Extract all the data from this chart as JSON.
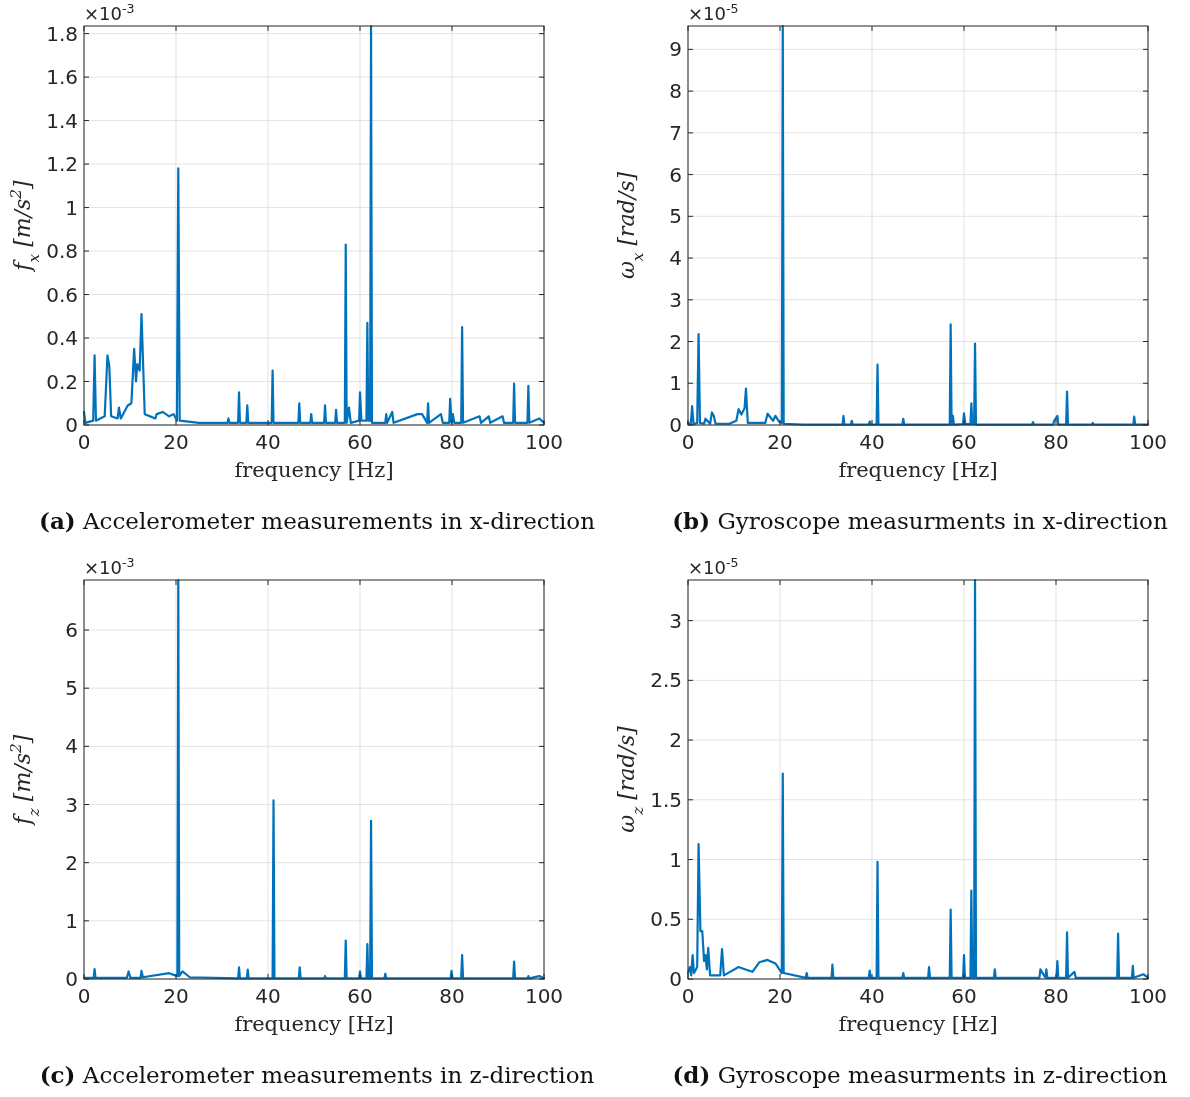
{
  "chart_data": [
    {
      "type": "line",
      "title": "(a) Accelerometer measurements in x-direction",
      "xlabel": "frequency [Hz]",
      "ylabel": "f$_{x}$ [m/s$^{2}$]",
      "annotations": [
        "×10$^{-3}$"
      ],
      "xlim": [
        0,
        100
      ],
      "xticks": [
        0,
        20,
        40,
        60,
        80,
        100
      ],
      "ylim": [
        0,
        1.835
      ],
      "yticks": [
        0,
        0.2,
        0.4,
        0.6,
        0.8,
        1,
        1.2,
        1.4,
        1.6,
        1.8
      ],
      "grid": true,
      "series": [
        {
          "color": "#0072bd",
          "x": [
            0,
            0.3,
            2.0,
            2.3,
            2.6,
            4.5,
            5.1,
            5.5,
            5.9,
            7.3,
            7.6,
            8,
            9.5,
            10.3,
            10.9,
            11.3,
            11.6,
            12.1,
            12.5,
            13.2,
            15.5,
            15.8,
            17.1,
            18.5,
            19.5,
            20.2,
            20.5,
            20.8,
            25,
            31.2,
            31.4,
            31.6,
            33.5,
            33.7,
            33.9,
            35.3,
            35.5,
            35.7,
            40.8,
            41,
            41.2,
            46.6,
            46.8,
            47,
            49.2,
            49.4,
            49.6,
            52.2,
            52.4,
            52.6,
            54.6,
            54.8,
            55,
            56.7,
            56.9,
            57.1,
            57.6,
            58,
            59.8,
            60,
            60.3,
            61.4,
            61.6,
            61.8,
            62.2,
            62.4,
            62.6,
            65.5,
            65.7,
            65.9,
            67,
            67.3,
            72.5,
            73.5,
            74.6,
            74.8,
            75,
            77.6,
            78,
            79.4,
            79.6,
            79.9,
            80.2,
            80.5,
            82,
            82.2,
            82.4,
            86,
            86.3,
            88,
            88.3,
            91,
            91.3,
            93.3,
            93.5,
            93.7,
            96.4,
            96.6,
            96.8,
            99,
            100
          ],
          "values": [
            0.06,
            0.01,
            0.02,
            0.32,
            0.02,
            0.04,
            0.32,
            0.27,
            0.04,
            0.03,
            0.08,
            0.03,
            0.09,
            0.1,
            0.35,
            0.2,
            0.28,
            0.25,
            0.51,
            0.05,
            0.03,
            0.05,
            0.06,
            0.04,
            0.05,
            0.02,
            1.18,
            0.02,
            0.01,
            0.01,
            0.03,
            0.01,
            0.01,
            0.15,
            0.01,
            0.01,
            0.09,
            0.01,
            0.01,
            0.25,
            0.01,
            0.01,
            0.1,
            0.01,
            0.01,
            0.05,
            0.01,
            0.01,
            0.09,
            0.01,
            0.01,
            0.07,
            0.01,
            0.01,
            0.83,
            0.01,
            0.08,
            0.01,
            0.02,
            0.15,
            0.02,
            0.02,
            0.47,
            0.02,
            0.02,
            1.835,
            0.01,
            0.01,
            0.05,
            0.01,
            0.06,
            0.01,
            0.05,
            0.05,
            0.01,
            0.1,
            0.01,
            0.05,
            0.01,
            0.01,
            0.12,
            0.01,
            0.05,
            0.01,
            0.01,
            0.45,
            0.01,
            0.04,
            0.01,
            0.04,
            0.01,
            0.04,
            0.01,
            0.01,
            0.19,
            0.01,
            0.01,
            0.18,
            0.01,
            0.03,
            0.01
          ]
        }
      ]
    },
    {
      "type": "line",
      "title": "(b) Gyroscope measurments in x-direction",
      "xlabel": "frequency [Hz]",
      "ylabel": "ω$_{x}$ [rad/s]",
      "annotations": [
        "×10$^{-5}$"
      ],
      "xlim": [
        0,
        100
      ],
      "xticks": [
        0,
        20,
        40,
        60,
        80,
        100
      ],
      "ylim": [
        0,
        9.56
      ],
      "yticks": [
        0,
        1,
        2,
        3,
        4,
        5,
        6,
        7,
        8,
        9
      ],
      "grid": true,
      "series": [
        {
          "color": "#0072bd",
          "x": [
            0,
            0.6,
            0.9,
            1.2,
            2.0,
            2.3,
            2.6,
            3.5,
            3.8,
            4.8,
            5.2,
            5.6,
            6,
            9,
            10.5,
            11,
            11.6,
            12.3,
            12.6,
            13,
            16.8,
            17.3,
            18.5,
            19,
            19.8,
            20.4,
            20.6,
            20.8,
            25,
            33.6,
            33.8,
            34,
            35.4,
            35.6,
            35.8,
            39.3,
            39.5,
            39.7,
            41,
            41.2,
            41.4,
            46.6,
            46.8,
            47,
            56.9,
            57.1,
            57.3,
            57.6,
            57.8,
            59.8,
            60,
            60.3,
            61.4,
            61.6,
            61.8,
            62.2,
            62.4,
            62.6,
            74.8,
            75,
            75.2,
            79.4,
            79.6,
            80.3,
            80.5,
            82.2,
            82.4,
            82.6,
            87.8,
            88,
            88.2,
            96.8,
            97,
            97.2,
            100
          ],
          "values": [
            0.05,
            0.02,
            0.45,
            0.02,
            0.05,
            2.18,
            0.05,
            0.03,
            0.15,
            0.03,
            0.3,
            0.22,
            0.03,
            0.03,
            0.1,
            0.38,
            0.25,
            0.4,
            0.87,
            0.05,
            0.05,
            0.27,
            0.1,
            0.22,
            0.08,
            0.05,
            9.56,
            0.03,
            0.01,
            0.01,
            0.22,
            0.01,
            0.01,
            0.1,
            0.01,
            0.01,
            0.08,
            0.01,
            0.01,
            1.45,
            0.01,
            0.01,
            0.15,
            0.01,
            0.01,
            2.41,
            0.01,
            0.22,
            0.01,
            0.02,
            0.28,
            0.02,
            0.02,
            0.52,
            0.02,
            0.02,
            1.95,
            0.01,
            0.01,
            0.07,
            0.01,
            0.01,
            0.1,
            0.22,
            0.01,
            0.01,
            0.8,
            0.01,
            0.01,
            0.05,
            0.01,
            0.01,
            0.2,
            0.01,
            0.01
          ]
        }
      ]
    },
    {
      "type": "line",
      "title": "(c) Accelerometer measurements in z-direction",
      "xlabel": "frequency [Hz]",
      "ylabel": "f$_{z}$ [m/s$^{2}$]",
      "annotations": [
        "×10$^{-3}$"
      ],
      "xlim": [
        0,
        100
      ],
      "xticks": [
        0,
        20,
        40,
        60,
        80,
        100
      ],
      "ylim": [
        0,
        6.86
      ],
      "yticks": [
        0,
        1,
        2,
        3,
        4,
        5,
        6
      ],
      "grid": true,
      "series": [
        {
          "color": "#0072bd",
          "x": [
            0,
            2.1,
            2.3,
            2.5,
            9.3,
            9.7,
            10.1,
            12.3,
            12.5,
            12.8,
            18.5,
            20.3,
            20.5,
            20.7,
            21.4,
            23,
            33.5,
            33.7,
            33.9,
            35.4,
            35.6,
            35.8,
            41,
            41.2,
            41.4,
            46.7,
            46.9,
            47.1,
            52.2,
            52.4,
            52.6,
            56.7,
            56.9,
            57.1,
            59.8,
            60,
            60.2,
            61.4,
            61.6,
            61.8,
            62.2,
            62.4,
            62.6,
            65.3,
            65.5,
            65.7,
            79.7,
            79.9,
            80.1,
            82,
            82.2,
            82.4,
            93.3,
            93.5,
            93.7,
            96.4,
            96.6,
            96.8,
            99,
            100
          ],
          "values": [
            0.02,
            0.02,
            0.17,
            0.02,
            0.02,
            0.13,
            0.02,
            0.02,
            0.14,
            0.03,
            0.1,
            0.05,
            6.86,
            0.05,
            0.13,
            0.03,
            0.01,
            0.2,
            0.01,
            0.01,
            0.16,
            0.01,
            0.01,
            3.07,
            0.01,
            0.01,
            0.2,
            0.01,
            0.01,
            0.05,
            0.01,
            0.01,
            0.66,
            0.01,
            0.01,
            0.13,
            0.01,
            0.01,
            0.6,
            0.01,
            0.01,
            2.72,
            0.01,
            0.01,
            0.09,
            0.01,
            0.01,
            0.14,
            0.01,
            0.01,
            0.41,
            0.01,
            0.01,
            0.3,
            0.01,
            0.01,
            0.05,
            0.01,
            0.05,
            0.01
          ]
        }
      ]
    },
    {
      "type": "line",
      "title": "(d) Gyroscope measurments in z-direction",
      "xlabel": "frequency [Hz]",
      "ylabel": "ω$_{z}$ [rad/s]",
      "annotations": [
        "×10$^{-5}$"
      ],
      "xlim": [
        0,
        100
      ],
      "xticks": [
        0,
        20,
        40,
        60,
        80,
        100
      ],
      "ylim": [
        0,
        3.34
      ],
      "yticks": [
        0,
        0.5,
        1,
        1.5,
        2,
        2.5,
        3
      ],
      "grid": true,
      "series": [
        {
          "color": "#0072bd",
          "x": [
            0,
            0.4,
            0.7,
            1,
            1.3,
            2.0,
            2.3,
            2.7,
            3.1,
            3.5,
            3.8,
            4.1,
            4.4,
            4.8,
            7,
            7.4,
            7.8,
            11,
            12.5,
            14,
            15.5,
            17.3,
            19,
            20.4,
            20.6,
            20.8,
            25.6,
            25.8,
            26,
            31.2,
            31.4,
            31.6,
            39.3,
            39.5,
            39.7,
            41,
            41.2,
            41.4,
            46.6,
            46.8,
            47,
            52.2,
            52.4,
            52.6,
            56.9,
            57.1,
            57.3,
            59.8,
            60,
            60.2,
            61.4,
            61.6,
            61.8,
            62.2,
            62.4,
            62.6,
            66.5,
            66.7,
            66.9,
            76.4,
            76.6,
            77.7,
            77.9,
            78.1,
            80.1,
            80.3,
            80.5,
            82.2,
            82.4,
            82.6,
            84,
            84.3,
            93.3,
            93.5,
            93.7,
            96.5,
            96.7,
            96.9,
            99,
            100
          ],
          "values": [
            0.05,
            0.1,
            0.03,
            0.2,
            0.05,
            0.1,
            1.13,
            0.4,
            0.4,
            0.15,
            0.2,
            0.08,
            0.26,
            0.03,
            0.03,
            0.25,
            0.03,
            0.1,
            0.08,
            0.06,
            0.14,
            0.16,
            0.13,
            0.05,
            1.72,
            0.05,
            0.01,
            0.05,
            0.01,
            0.01,
            0.12,
            0.01,
            0.01,
            0.07,
            0.01,
            0.01,
            0.98,
            0.01,
            0.01,
            0.05,
            0.01,
            0.01,
            0.1,
            0.01,
            0.01,
            0.58,
            0.01,
            0.01,
            0.2,
            0.01,
            0.01,
            0.74,
            0.01,
            0.01,
            3.34,
            0.01,
            0.01,
            0.08,
            0.01,
            0.01,
            0.08,
            0.01,
            0.08,
            0.01,
            0.01,
            0.15,
            0.01,
            0.01,
            0.39,
            0.01,
            0.06,
            0.01,
            0.01,
            0.38,
            0.01,
            0.01,
            0.11,
            0.01,
            0.04,
            0.01
          ]
        }
      ]
    }
  ]
}
